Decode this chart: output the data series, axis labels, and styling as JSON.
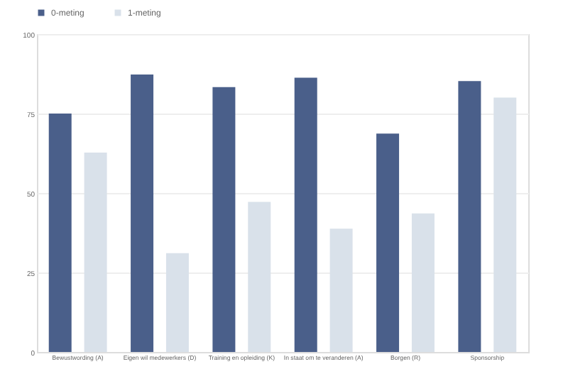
{
  "chart_data": {
    "type": "bar",
    "categories": [
      "Bewustwording (A)",
      "Eigen wil medewerkers (D)",
      "Training en opleiding (K)",
      "In staat om te veranderen (A)",
      "Borgen (R)",
      "Sponsorship"
    ],
    "series": [
      {
        "name": "0-meting",
        "color": "#4a5f8a",
        "values": [
          75,
          87.3,
          83.3,
          86.3,
          68.7,
          85.2
        ]
      },
      {
        "name": "1-meting",
        "color": "#d9e1ea",
        "values": [
          62.7,
          31.1,
          47.2,
          38.8,
          43.6,
          80
        ]
      }
    ],
    "ylim": [
      0,
      100
    ],
    "yticks": [
      0,
      25,
      50,
      75,
      100
    ],
    "grid": "y",
    "legend": "top left"
  }
}
